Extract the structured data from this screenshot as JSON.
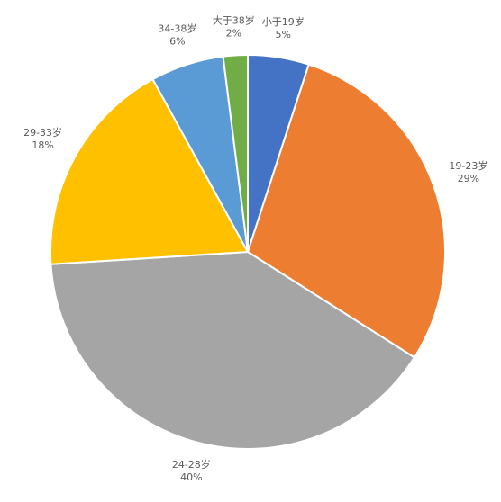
{
  "chart_data": {
    "type": "pie",
    "categories": [
      "小于19岁",
      "19-23岁",
      "24-28岁",
      "29-33岁",
      "34-38岁",
      "大于38岁"
    ],
    "values": [
      5,
      29,
      40,
      18,
      6,
      2
    ],
    "value_labels": [
      "5%",
      "29%",
      "40%",
      "18%",
      "6%",
      "2%"
    ],
    "colors": [
      "#4472c4",
      "#ed7d31",
      "#a5a5a5",
      "#ffc000",
      "#5b9bd5",
      "#70ad47"
    ]
  }
}
